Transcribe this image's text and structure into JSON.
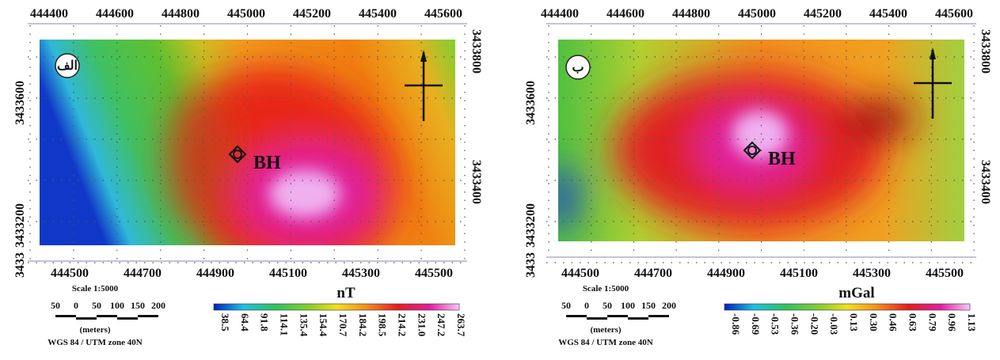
{
  "maps": [
    {
      "label": "الف",
      "marker": "BH",
      "top_ticks": [
        "444400",
        "444600",
        "444800",
        "445000",
        "445200",
        "445400",
        "445600"
      ],
      "bottom_ticks": [
        "444500",
        "444700",
        "444900",
        "445100",
        "445300",
        "445500"
      ],
      "left_ticks": [
        "3433600",
        "3433200",
        "3433"
      ],
      "right_ticks": [
        "3433800",
        "3433400"
      ],
      "scale": "Scale 1:5000",
      "scale_ticks": [
        "50",
        "0",
        "50",
        "100",
        "150",
        "200"
      ],
      "units_note": "(meters)",
      "datum": "WGS 84 / UTM zone 40N",
      "colorbar_title": "nT",
      "colorbar_labels": [
        "38.5",
        "64.4",
        "91.8",
        "114.1",
        "135.4",
        "154.4",
        "170.7",
        "184.2",
        "198.5",
        "214.2",
        "231.0",
        "247.2",
        "263.7"
      ]
    },
    {
      "label": "ب",
      "marker": "BH",
      "top_ticks": [
        "444400",
        "444600",
        "444800",
        "445000",
        "445200",
        "445400",
        "445600"
      ],
      "bottom_ticks": [
        "444500",
        "444700",
        "444900",
        "445100",
        "445300",
        "445500"
      ],
      "left_ticks": [
        "3433600",
        "3433200",
        "3433"
      ],
      "right_ticks": [
        "3433800",
        "3433400"
      ],
      "scale": "Scale 1:5000",
      "scale_ticks": [
        "50",
        "0",
        "50",
        "100",
        "150",
        "200"
      ],
      "units_note": "(meters)",
      "datum": "WGS 84 / UTM zone 40N",
      "colorbar_title": "mGal",
      "colorbar_labels": [
        "-0.86",
        "-0.69",
        "-0.53",
        "-0.36",
        "-0.20",
        "-0.03",
        "0.13",
        "0.30",
        "0.46",
        "0.63",
        "0.79",
        "0.96",
        "1.13"
      ]
    }
  ]
}
